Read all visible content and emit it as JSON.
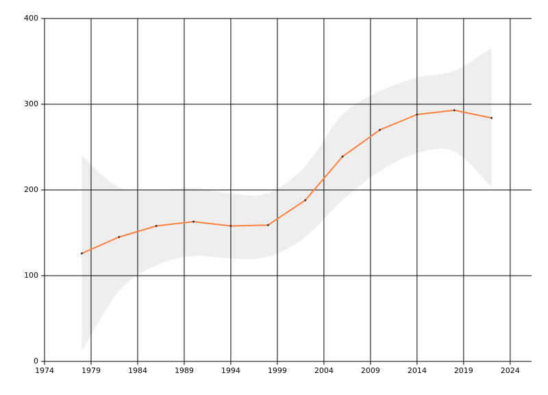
{
  "chart_data": {
    "type": "line",
    "x": [
      1978,
      1982,
      1986,
      1990,
      1994,
      1998,
      2002,
      2006,
      2010,
      2014,
      2018,
      2022
    ],
    "values": [
      126,
      145,
      158,
      163,
      158,
      159,
      188,
      239,
      270,
      288,
      293,
      284
    ],
    "color": "#ff7f3f",
    "band": {
      "lower": [
        12,
        82,
        112,
        123,
        120,
        122,
        145,
        188,
        222,
        243,
        245,
        203
      ],
      "upper": [
        240,
        203,
        200,
        202,
        196,
        196,
        228,
        288,
        315,
        331,
        339,
        366
      ],
      "color": "#eeeeee"
    },
    "xlim": [
      1974,
      2026
    ],
    "xticks": [
      1974,
      1979,
      1984,
      1989,
      1994,
      1999,
      2004,
      2009,
      2014,
      2019,
      2024
    ],
    "ylim": [
      0,
      400
    ],
    "yticks": [
      0,
      100,
      200,
      300,
      400
    ],
    "grid": true
  }
}
